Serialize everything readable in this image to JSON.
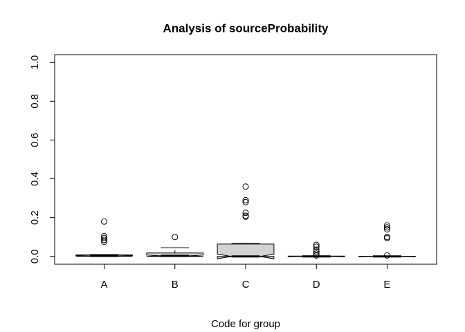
{
  "chart_data": {
    "type": "boxplot",
    "title": "Analysis of sourceProbability",
    "x_label": "Code for group",
    "categories": [
      "A",
      "B",
      "C",
      "D",
      "E"
    ],
    "boxes": [
      {
        "whislo": 0,
        "q1": 0.001,
        "median": 0.003,
        "q3": 0.008,
        "whishi": 0.01,
        "notch_lo": 0.001,
        "notch_hi": 0.005,
        "outliers": [
          0.18,
          0.105,
          0.095,
          0.085,
          0.075
        ]
      },
      {
        "whislo": 0,
        "q1": 0,
        "median": 0.003,
        "q3": 0.018,
        "whishi": 0.045,
        "notch_lo": 0,
        "notch_hi": 0.007,
        "outliers": [
          0.1
        ]
      },
      {
        "whislo": 0,
        "q1": 0,
        "median": 0,
        "q3": 0.064,
        "whishi": 0.068,
        "notch_lo": -0.012,
        "notch_hi": 0.012,
        "outliers": [
          0.36,
          0.29,
          0.28,
          0.225,
          0.21,
          0.205
        ]
      },
      {
        "whislo": 0,
        "q1": 0,
        "median": 0,
        "q3": 0.002,
        "whishi": 0.003,
        "notch_lo": -0.001,
        "notch_hi": 0.001,
        "outliers": [
          0.06,
          0.05,
          0.035,
          0.025,
          0.015,
          0.005
        ]
      },
      {
        "whislo": 0,
        "q1": 0,
        "median": 0,
        "q3": 0.001,
        "whishi": 0.002,
        "notch_lo": -0.001,
        "notch_hi": 0.001,
        "outliers": [
          0.16,
          0.15,
          0.14,
          0.1,
          0.095,
          0.005
        ]
      }
    ],
    "box_color": "#d3d3d3",
    "xlim": [
      0.3,
      5.7
    ],
    "ylim": [
      -0.04,
      1.04
    ],
    "yticks": [
      {
        "value": 0,
        "label": "0.0"
      },
      0.2,
      0.4,
      0.6,
      0.8,
      {
        "value": 1,
        "label": "1.0"
      }
    ]
  }
}
